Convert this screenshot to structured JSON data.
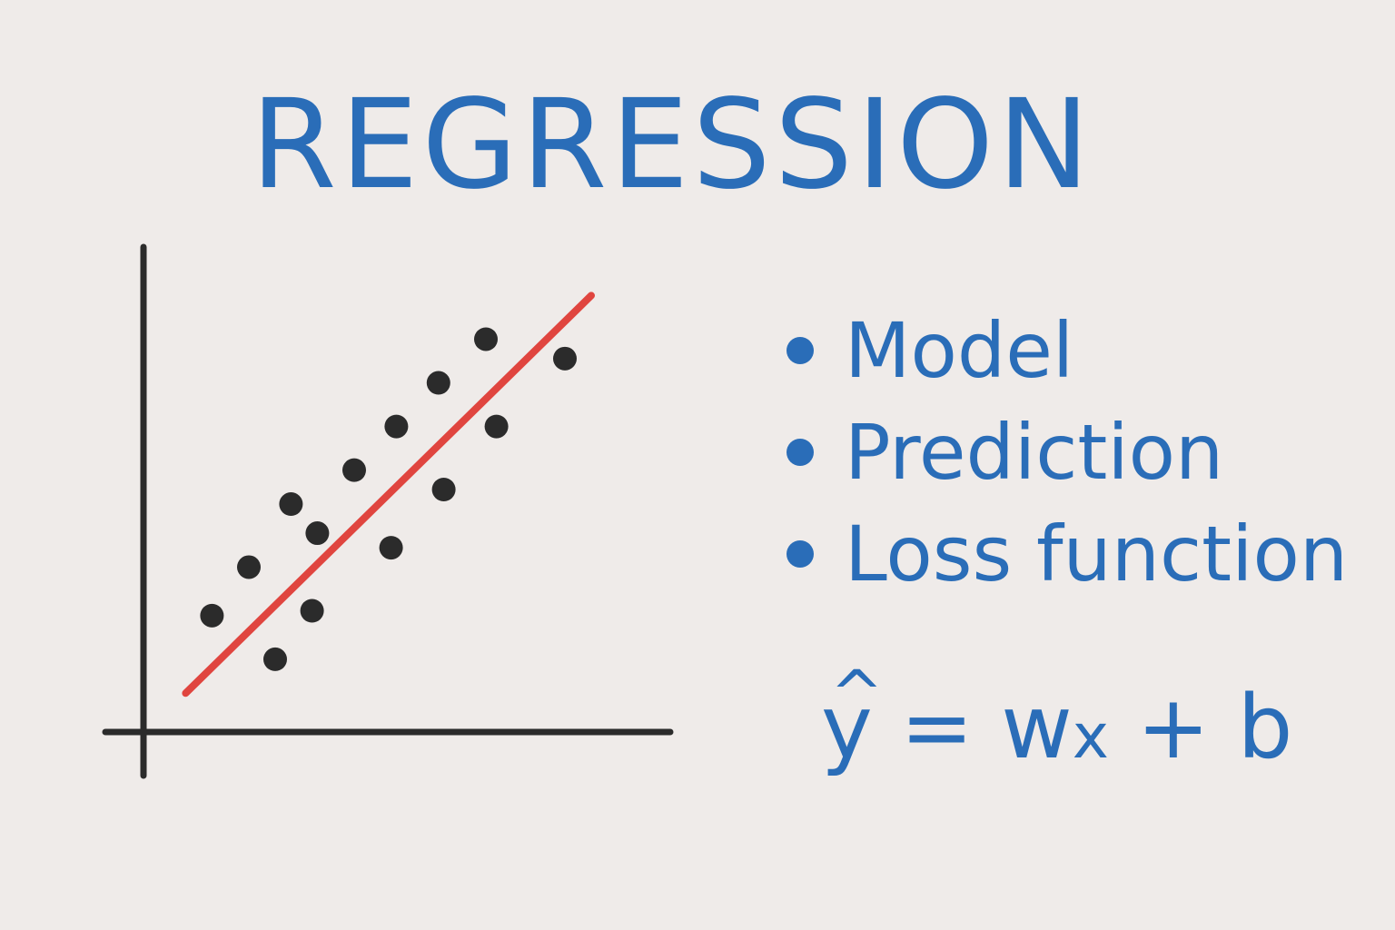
{
  "title": "REGRESSION",
  "bullets": [
    {
      "label": "Model"
    },
    {
      "label": "Prediction"
    },
    {
      "label": "Loss function"
    }
  ],
  "formula": {
    "lhs": "y",
    "hat": "^",
    "equals": "=",
    "w": "w",
    "x": "x",
    "plus": "+",
    "b": "b"
  },
  "colors": {
    "background": "#efebe9",
    "text_blue": "#2a6db8",
    "line_red": "#e0453f",
    "points": "#2b2b2b",
    "axes": "#2b2b2b"
  },
  "chart_data": {
    "type": "scatter",
    "title": "",
    "xlabel": "",
    "ylabel": "",
    "xlim": [
      0,
      100
    ],
    "ylim": [
      0,
      100
    ],
    "grid": false,
    "series": [
      {
        "points": [
          {
            "x": 13,
            "y": 24
          },
          {
            "x": 20,
            "y": 34
          },
          {
            "x": 25,
            "y": 15
          },
          {
            "x": 28,
            "y": 47
          },
          {
            "x": 33,
            "y": 41
          },
          {
            "x": 32,
            "y": 25
          },
          {
            "x": 40,
            "y": 54
          },
          {
            "x": 47,
            "y": 38
          },
          {
            "x": 48,
            "y": 63
          },
          {
            "x": 56,
            "y": 72
          },
          {
            "x": 57,
            "y": 50
          },
          {
            "x": 65,
            "y": 81
          },
          {
            "x": 67,
            "y": 63
          },
          {
            "x": 80,
            "y": 77
          }
        ]
      }
    ],
    "fit_line": {
      "x": [
        8,
        85
      ],
      "y": [
        8,
        90
      ]
    }
  }
}
